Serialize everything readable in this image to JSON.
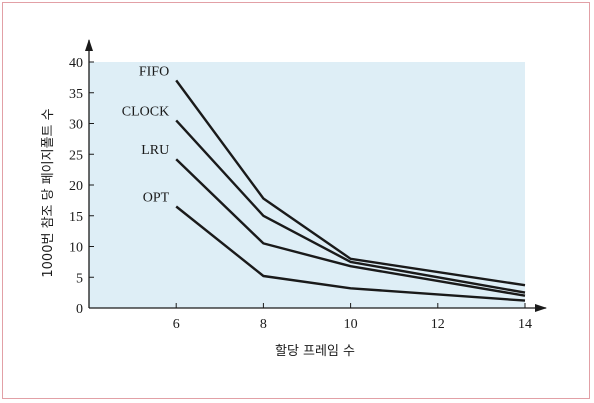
{
  "chart_data": {
    "type": "line",
    "xlabel": "할당 프레임 수",
    "ylabel": "1000번 참조 당 페이지폴트 수",
    "x": [
      6,
      8,
      10,
      14
    ],
    "xticks": [
      6,
      8,
      10,
      12,
      14
    ],
    "yticks": [
      0,
      5,
      10,
      15,
      20,
      25,
      30,
      35,
      40
    ],
    "xlim": [
      4,
      14
    ],
    "ylim": [
      0,
      40
    ],
    "grid": false,
    "plot_background": "#deeef6",
    "line_color": "#1a1a1a",
    "series": [
      {
        "name": "FIFO",
        "values": [
          37,
          17.8,
          8,
          3.7
        ]
      },
      {
        "name": "CLOCK",
        "values": [
          30.5,
          15,
          7.5,
          2.5
        ]
      },
      {
        "name": "LRU",
        "values": [
          24.2,
          10.5,
          6.8,
          2
        ]
      },
      {
        "name": "OPT",
        "values": [
          16.5,
          5.2,
          3.2,
          1.2
        ]
      }
    ]
  }
}
